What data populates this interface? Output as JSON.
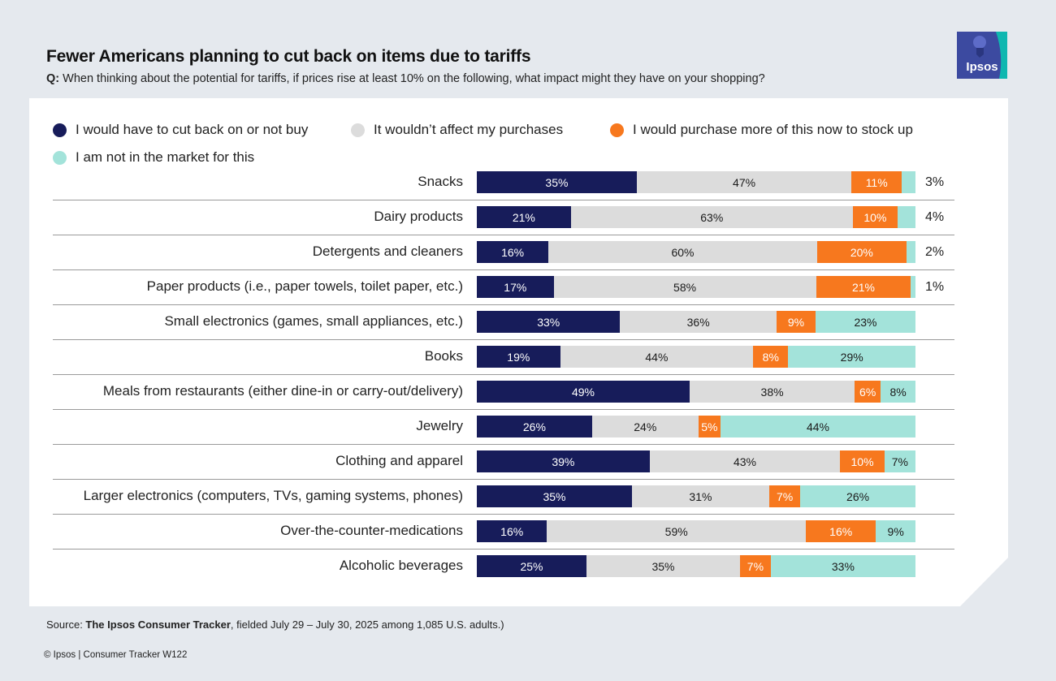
{
  "title": "Fewer Americans planning to cut back on items due to tariffs",
  "question": {
    "prefix": "Q:",
    "text": " When thinking about the potential for tariffs, if prices rise at least 10% on the following, what impact might they have on your shopping?"
  },
  "logo": {
    "text": "Ipsos",
    "color": "#3c4aa0",
    "accent": "#0fb7b0"
  },
  "chart_data": {
    "type": "bar",
    "orientation": "horizontal",
    "stacked": true,
    "title": "Fewer Americans planning to cut back on items due to tariffs",
    "categories": [
      "Snacks",
      "Dairy products",
      "Detergents and cleaners",
      "Paper products (i.e., paper towels, toilet paper, etc.)",
      "Small electronics (games, small appliances, etc.)",
      "Books",
      "Meals from restaurants (either dine-in or carry-out/delivery)",
      "Jewelry",
      "Clothing and apparel",
      "Larger electronics (computers, TVs, gaming systems, phones)",
      "Over-the-counter-medications",
      "Alcoholic beverages"
    ],
    "series": [
      {
        "name": "I would have to cut back on or not buy",
        "color": "#171c5a",
        "dark": true,
        "values": [
          35,
          21,
          16,
          17,
          33,
          19,
          49,
          26,
          39,
          35,
          16,
          25
        ]
      },
      {
        "name": "It wouldn’t affect my purchases",
        "color": "#dcdcdc",
        "dark": false,
        "values": [
          47,
          63,
          60,
          58,
          36,
          44,
          38,
          24,
          43,
          31,
          59,
          35
        ]
      },
      {
        "name": "I would purchase more of this now to stock up",
        "color": "#f7781e",
        "dark": true,
        "values": [
          11,
          10,
          20,
          21,
          9,
          8,
          6,
          5,
          10,
          7,
          16,
          7
        ]
      },
      {
        "name": "I am not in the market for this",
        "color": "#a3e3da",
        "dark": false,
        "values": [
          3,
          4,
          2,
          1,
          23,
          29,
          8,
          44,
          7,
          26,
          9,
          33
        ]
      }
    ],
    "outside_labels": [
      true,
      true,
      true,
      true,
      false,
      false,
      false,
      false,
      false,
      false,
      false,
      false
    ],
    "unit": "%",
    "xlim": [
      0,
      100
    ],
    "legend_position": "top"
  },
  "source": {
    "prefix": "Source: ",
    "name": "The Ipsos Consumer Tracker",
    "suffix": ", fielded July 29 – July 30, 2025 among 1,085 U.S. adults.)"
  },
  "copyright": "© Ipsos | Consumer Tracker W122"
}
